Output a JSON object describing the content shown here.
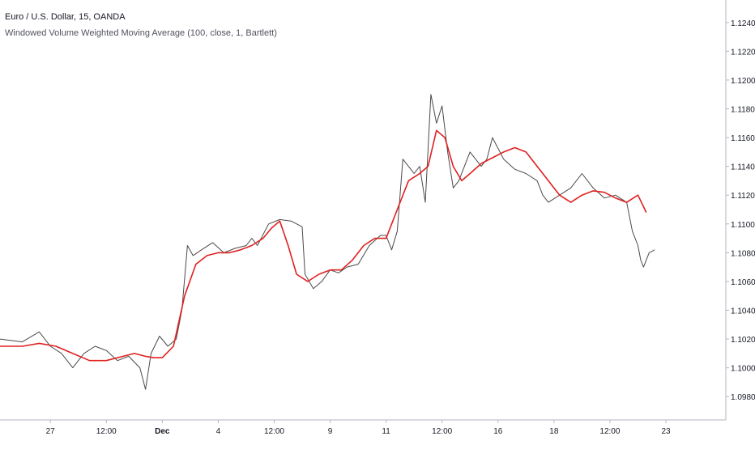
{
  "legend": {
    "symbol_line": "Euro / U.S. Dollar, 15, OANDA",
    "indicator_line": "Windowed Volume Weighted Moving Average (100, close, 1, Bartlett)"
  },
  "colors": {
    "price": "#4a4a4a",
    "average": "#e02020",
    "axis_text": "#131722",
    "axis_line": "#b2b5be"
  },
  "chart_data": {
    "type": "line",
    "ylim": [
      1.097,
      1.125
    ],
    "y_ticks": [
      "1.12400",
      "1.12200",
      "1.12000",
      "1.11800",
      "1.11600",
      "1.11400",
      "1.11200",
      "1.11000",
      "1.10800",
      "1.10600",
      "1.10400",
      "1.10200",
      "1.10000",
      "1.09800"
    ],
    "x_ticks": [
      "27",
      "12:00",
      "Dec",
      "4",
      "12:00",
      "9",
      "11",
      "12:00",
      "16",
      "18",
      "12:00",
      "23"
    ],
    "x_tick_positions": [
      0.5,
      1.5,
      2.5,
      3.5,
      4.5,
      5.5,
      6.5,
      7.5,
      8.5,
      9.5,
      10.5,
      11.5
    ],
    "xlim": [
      -0.4,
      11.5
    ],
    "series": [
      {
        "key": "price",
        "x": [
          -0.4,
          0.0,
          0.3,
          0.5,
          0.7,
          0.9,
          1.1,
          1.3,
          1.5,
          1.7,
          1.9,
          2.1,
          2.2,
          2.3,
          2.45,
          2.6,
          2.75,
          2.85,
          2.95,
          3.05,
          3.2,
          3.4,
          3.6,
          3.8,
          4.0,
          4.1,
          4.2,
          4.4,
          4.6,
          4.8,
          5.0,
          5.05,
          5.2,
          5.35,
          5.5,
          5.65,
          5.8,
          6.0,
          6.2,
          6.4,
          6.5,
          6.6,
          6.7,
          6.8,
          7.0,
          7.1,
          7.2,
          7.3,
          7.4,
          7.5,
          7.6,
          7.7,
          7.8,
          7.9,
          8.0,
          8.1,
          8.2,
          8.3,
          8.4,
          8.6,
          8.8,
          9.0,
          9.2,
          9.3,
          9.4,
          9.6,
          9.8,
          10.0,
          10.2,
          10.4,
          10.6,
          10.8,
          10.9,
          11.0,
          11.05,
          11.1,
          11.2,
          11.3
        ],
        "y": [
          1.102,
          1.1018,
          1.1025,
          1.1015,
          1.101,
          1.1,
          1.101,
          1.1015,
          1.1012,
          1.1005,
          1.1008,
          1.1,
          1.0985,
          1.101,
          1.1022,
          1.1015,
          1.102,
          1.104,
          1.1085,
          1.1078,
          1.1082,
          1.1087,
          1.108,
          1.1083,
          1.1085,
          1.109,
          1.1085,
          1.11,
          1.1103,
          1.1102,
          1.1098,
          1.1065,
          1.1055,
          1.106,
          1.1068,
          1.1066,
          1.107,
          1.1072,
          1.1085,
          1.1092,
          1.1092,
          1.1082,
          1.1095,
          1.1145,
          1.1135,
          1.114,
          1.1115,
          1.119,
          1.117,
          1.1182,
          1.115,
          1.1125,
          1.113,
          1.114,
          1.115,
          1.1145,
          1.114,
          1.1145,
          1.116,
          1.1145,
          1.1138,
          1.1135,
          1.113,
          1.112,
          1.1115,
          1.112,
          1.1125,
          1.1135,
          1.1125,
          1.1118,
          1.112,
          1.1115,
          1.1095,
          1.1085,
          1.1075,
          1.107,
          1.108,
          1.1082
        ]
      },
      {
        "key": "average",
        "x": [
          -0.4,
          0.0,
          0.3,
          0.6,
          0.9,
          1.2,
          1.5,
          1.8,
          2.0,
          2.2,
          2.35,
          2.5,
          2.7,
          2.9,
          3.1,
          3.3,
          3.5,
          3.7,
          3.9,
          4.1,
          4.3,
          4.45,
          4.6,
          4.75,
          4.9,
          5.1,
          5.3,
          5.5,
          5.7,
          5.9,
          6.1,
          6.3,
          6.5,
          6.7,
          6.9,
          7.1,
          7.25,
          7.4,
          7.55,
          7.7,
          7.85,
          8.0,
          8.2,
          8.4,
          8.6,
          8.8,
          9.0,
          9.2,
          9.4,
          9.6,
          9.8,
          10.0,
          10.2,
          10.4,
          10.6,
          10.8,
          11.0,
          11.15
        ],
        "y": [
          1.1015,
          1.1015,
          1.1017,
          1.1015,
          1.101,
          1.1005,
          1.1005,
          1.1008,
          1.101,
          1.1008,
          1.1007,
          1.1007,
          1.1015,
          1.105,
          1.1072,
          1.1078,
          1.108,
          1.108,
          1.1082,
          1.1085,
          1.109,
          1.1097,
          1.1102,
          1.1085,
          1.1065,
          1.106,
          1.1065,
          1.1068,
          1.1068,
          1.1075,
          1.1085,
          1.109,
          1.109,
          1.111,
          1.113,
          1.1135,
          1.114,
          1.1165,
          1.116,
          1.114,
          1.113,
          1.1135,
          1.1142,
          1.1146,
          1.115,
          1.1153,
          1.115,
          1.114,
          1.113,
          1.112,
          1.1115,
          1.112,
          1.1123,
          1.1122,
          1.1118,
          1.1115,
          1.112,
          1.1108
        ]
      }
    ]
  }
}
